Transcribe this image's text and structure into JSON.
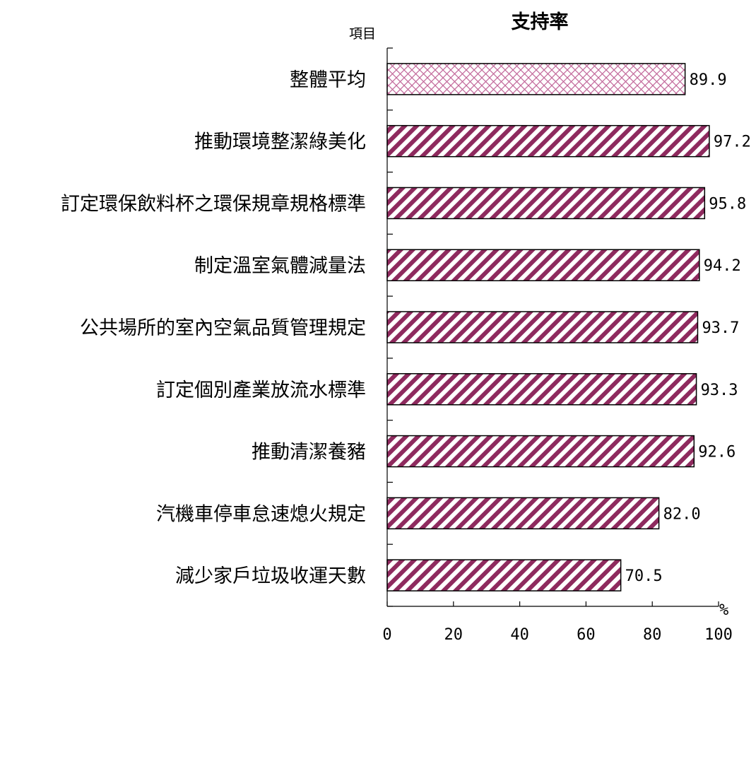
{
  "chart_data": {
    "type": "bar",
    "orientation": "horizontal",
    "title": "支持率",
    "ylabel": "項目",
    "unit": "%",
    "xlim": [
      0,
      100
    ],
    "xticks": [
      0,
      20,
      40,
      60,
      80,
      100
    ],
    "grid": false,
    "categories": [
      "整體平均",
      "推動環境整潔綠美化",
      "訂定環保飲料杯之環保規章規格標準",
      "制定溫室氣體減量法",
      "公共場所的室內空氣品質管理規定",
      "訂定個別產業放流水標準",
      "推動清潔養豬",
      "汽機車停車怠速熄火規定",
      "減少家戶垃圾收運天數"
    ],
    "values": [
      89.9,
      97.2,
      95.8,
      94.2,
      93.7,
      93.3,
      92.6,
      82.0,
      70.5
    ],
    "value_labels": [
      "89.9",
      "97.2",
      "95.8",
      "94.2",
      "93.7",
      "93.3",
      "92.6",
      "82.0",
      "70.5"
    ],
    "bar_patterns": [
      "crosshatch",
      "diagonal",
      "diagonal",
      "diagonal",
      "diagonal",
      "diagonal",
      "diagonal",
      "diagonal",
      "diagonal"
    ],
    "colors": {
      "bar_stripe": "#8e2a5e",
      "crosshatch": "#c2689a",
      "axis": "#000000"
    }
  }
}
